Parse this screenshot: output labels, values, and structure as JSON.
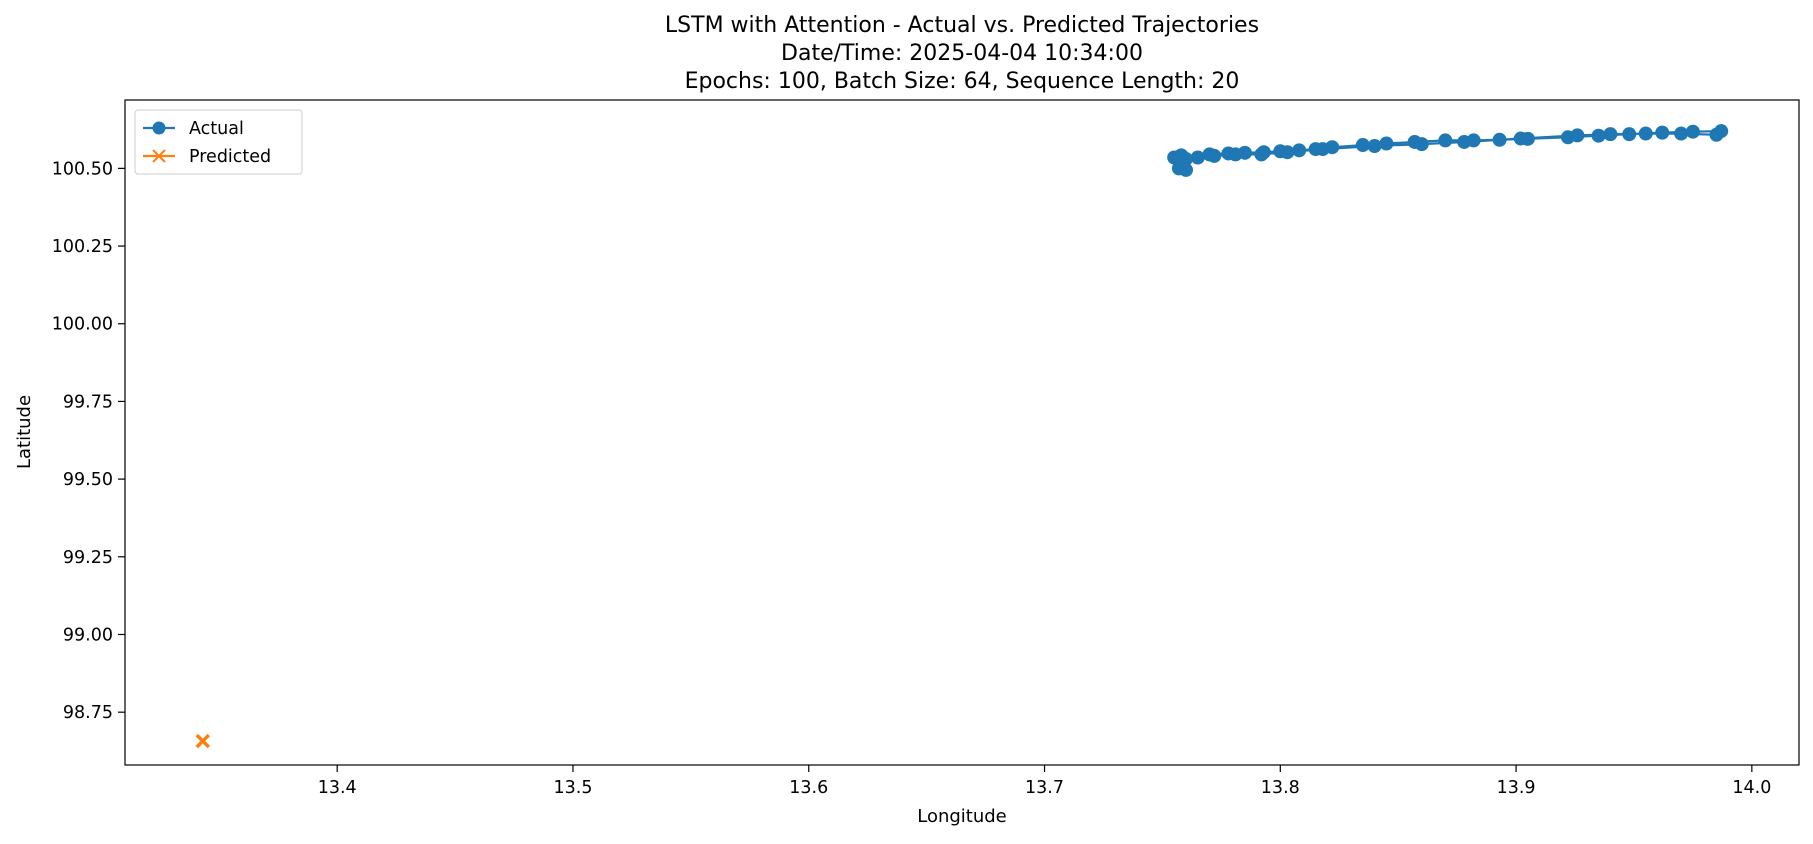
{
  "chart_data": {
    "type": "line",
    "title": "LSTM with Attention - Actual vs. Predicted Trajectories",
    "subtitle_lines": [
      "Date/Time: 2025-04-04 10:34:00",
      "Epochs: 100, Batch Size: 64, Sequence Length: 20"
    ],
    "xlabel": "Longitude",
    "ylabel": "Latitude",
    "xlim": [
      13.31,
      14.02
    ],
    "ylim": [
      98.58,
      100.72
    ],
    "xticks": [
      13.4,
      13.5,
      13.6,
      13.7,
      13.8,
      13.9,
      14.0
    ],
    "xtick_labels": [
      "13.4",
      "13.5",
      "13.6",
      "13.7",
      "13.8",
      "13.9",
      "14.0"
    ],
    "yticks": [
      98.75,
      99.0,
      99.25,
      99.5,
      99.75,
      100.0,
      100.25,
      100.5
    ],
    "ytick_labels": [
      "98.75",
      "99.00",
      "99.25",
      "99.50",
      "99.75",
      "100.00",
      "100.25",
      "100.50"
    ],
    "grid": false,
    "legend_position": "top-left",
    "series": [
      {
        "name": "Actual",
        "color": "#1f77b4",
        "marker": "circle",
        "x": [
          13.755,
          13.758,
          13.765,
          13.77,
          13.778,
          13.785,
          13.793,
          13.8,
          13.808,
          13.815,
          13.822,
          13.835,
          13.845,
          13.857,
          13.87,
          13.882,
          13.893,
          13.905,
          13.922,
          13.935,
          13.948,
          13.962,
          13.975,
          13.987,
          13.985,
          13.97,
          13.955,
          13.94,
          13.926,
          13.902,
          13.878,
          13.86,
          13.84,
          13.818,
          13.803,
          13.792,
          13.781,
          13.772,
          13.76,
          13.757,
          13.76
        ],
        "y": [
          100.535,
          100.542,
          100.535,
          100.545,
          100.548,
          100.55,
          100.552,
          100.555,
          100.558,
          100.562,
          100.568,
          100.575,
          100.58,
          100.585,
          100.59,
          100.59,
          100.592,
          100.595,
          100.6,
          100.605,
          100.61,
          100.615,
          100.618,
          100.62,
          100.608,
          100.612,
          100.612,
          100.61,
          100.606,
          100.596,
          100.585,
          100.578,
          100.572,
          100.562,
          100.552,
          100.545,
          100.545,
          100.54,
          100.53,
          100.5,
          100.495
        ]
      },
      {
        "name": "Predicted",
        "color": "#ff7f0e",
        "marker": "x",
        "x": [
          13.343
        ],
        "y": [
          98.657
        ]
      }
    ]
  }
}
